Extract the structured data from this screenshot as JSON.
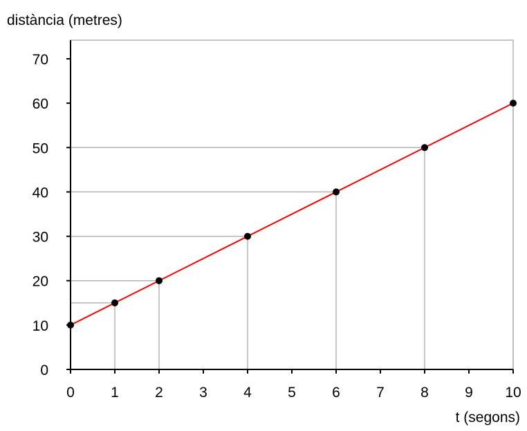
{
  "chart_data": {
    "type": "line",
    "title": "",
    "ylabel": "distància (metres)",
    "xlabel": "t (segons)",
    "xlim": [
      0,
      10
    ],
    "ylim": [
      0,
      70
    ],
    "xticks": [
      0,
      1,
      2,
      3,
      4,
      5,
      6,
      7,
      8,
      9,
      10
    ],
    "yticks": [
      0,
      10,
      20,
      30,
      40,
      50,
      60,
      70
    ],
    "grid": "guide lines from marked points to both axes",
    "legend": "none",
    "series": [
      {
        "x": [
          0,
          1,
          2,
          4,
          6,
          8,
          10
        ],
        "y": [
          10,
          15,
          20,
          30,
          40,
          50,
          60
        ],
        "line_color": "#ff0000",
        "marker_color": "#000000"
      }
    ],
    "guide_color": "#b3b3b3"
  }
}
